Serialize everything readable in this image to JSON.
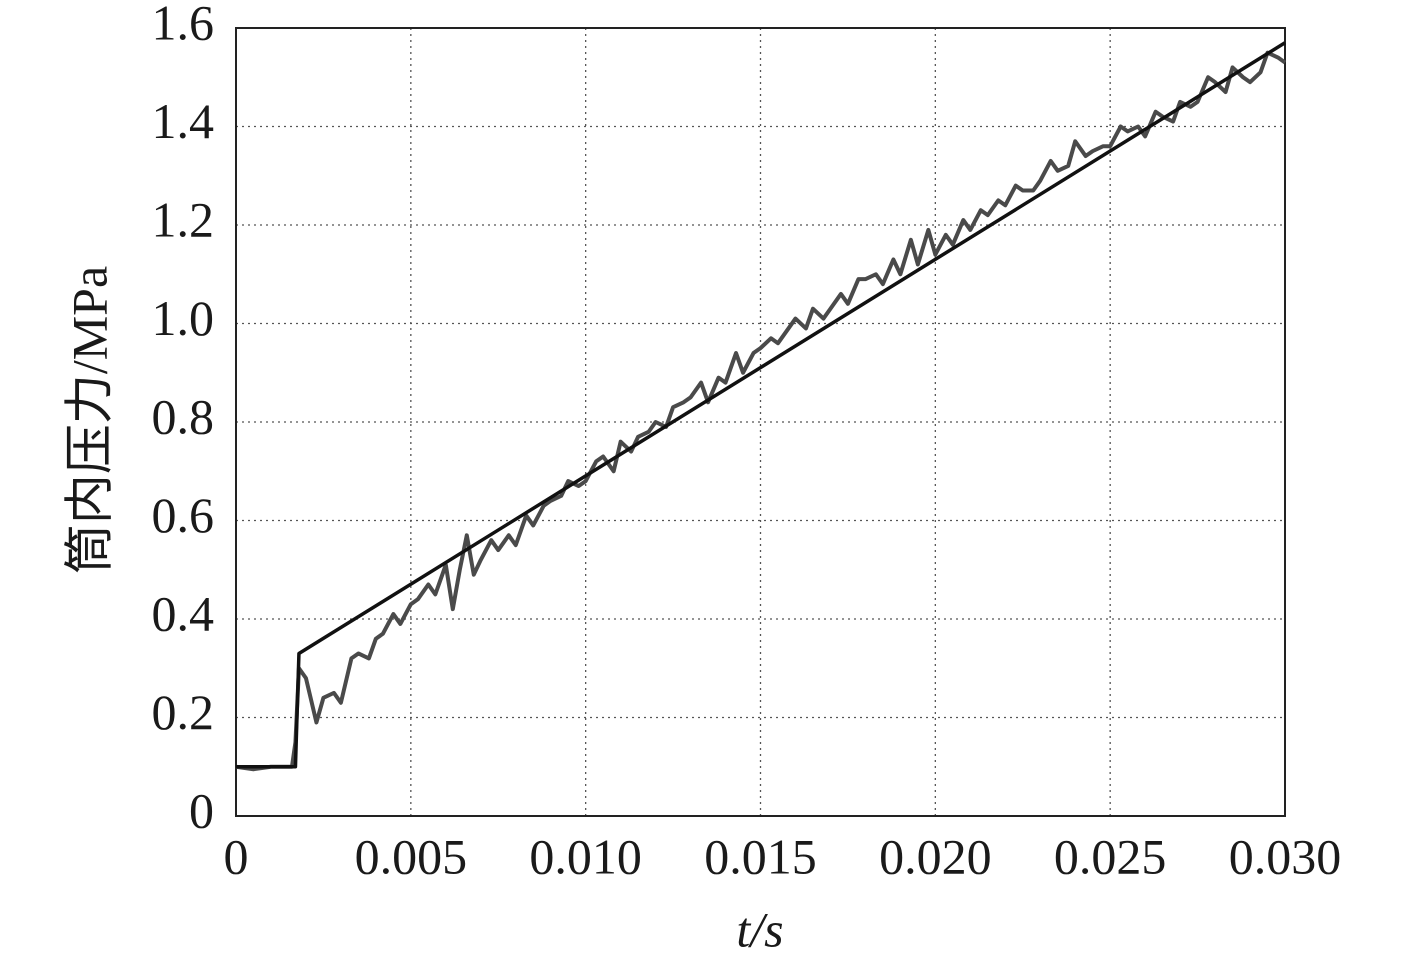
{
  "chart_data": {
    "type": "line",
    "xlabel": "t/s",
    "ylabel": "筒内压力/MPa",
    "xlim": [
      0,
      0.03
    ],
    "ylim": [
      0,
      1.6
    ],
    "xticks": [
      0,
      0.005,
      {
        "value": 0.01,
        "label": "0.010"
      },
      0.015,
      {
        "value": 0.02,
        "label": "0.020"
      },
      0.025,
      {
        "value": 0.03,
        "label": "0.030"
      }
    ],
    "yticks": [
      0,
      0.2,
      0.4,
      0.6,
      0.8,
      {
        "value": 1.0,
        "label": "1.0"
      },
      1.2,
      1.4,
      1.6
    ],
    "grid": true,
    "series": [
      {
        "color": "#4a4a4a",
        "x": [
          0,
          0.0005,
          0.001,
          0.0015,
          0.0016,
          0.0017,
          0.0018,
          0.002,
          0.0023,
          0.0025,
          0.0028,
          0.003,
          0.0033,
          0.0035,
          0.0038,
          0.004,
          0.0042,
          0.0045,
          0.0047,
          0.005,
          0.0052,
          0.0055,
          0.0057,
          0.006,
          0.0062,
          0.0064,
          0.0066,
          0.0068,
          0.007,
          0.0073,
          0.0075,
          0.0078,
          0.008,
          0.0083,
          0.0085,
          0.0088,
          0.009,
          0.0093,
          0.0095,
          0.0098,
          0.01,
          0.0103,
          0.0105,
          0.0108,
          0.011,
          0.0113,
          0.0115,
          0.0118,
          0.012,
          0.0123,
          0.0125,
          0.0128,
          0.013,
          0.0133,
          0.0135,
          0.0138,
          0.014,
          0.0143,
          0.0145,
          0.0148,
          0.015,
          0.0153,
          0.0155,
          0.0158,
          0.016,
          0.0163,
          0.0165,
          0.0168,
          0.017,
          0.0173,
          0.0175,
          0.0178,
          0.018,
          0.0183,
          0.0185,
          0.0188,
          0.019,
          0.0193,
          0.0195,
          0.0198,
          0.02,
          0.0203,
          0.0205,
          0.0208,
          0.021,
          0.0213,
          0.0215,
          0.0218,
          0.022,
          0.0223,
          0.0225,
          0.0228,
          0.023,
          0.0233,
          0.0235,
          0.0238,
          0.024,
          0.0243,
          0.0245,
          0.0248,
          0.025,
          0.0253,
          0.0255,
          0.0258,
          0.026,
          0.0263,
          0.0265,
          0.0268,
          0.027,
          0.0273,
          0.0275,
          0.0278,
          0.028,
          0.0283,
          0.0285,
          0.0288,
          0.029,
          0.0293,
          0.0295,
          0.0298,
          0.03
        ],
        "values": [
          0.1,
          0.095,
          0.1,
          0.1,
          0.1,
          0.15,
          0.3,
          0.28,
          0.19,
          0.24,
          0.25,
          0.23,
          0.32,
          0.33,
          0.32,
          0.36,
          0.37,
          0.41,
          0.39,
          0.43,
          0.44,
          0.47,
          0.45,
          0.51,
          0.42,
          0.5,
          0.57,
          0.49,
          0.52,
          0.56,
          0.54,
          0.57,
          0.55,
          0.61,
          0.59,
          0.63,
          0.64,
          0.65,
          0.68,
          0.67,
          0.68,
          0.72,
          0.73,
          0.7,
          0.76,
          0.74,
          0.77,
          0.78,
          0.8,
          0.79,
          0.83,
          0.84,
          0.85,
          0.88,
          0.84,
          0.89,
          0.88,
          0.94,
          0.9,
          0.94,
          0.95,
          0.97,
          0.96,
          0.99,
          1.01,
          0.99,
          1.03,
          1.01,
          1.03,
          1.06,
          1.04,
          1.09,
          1.09,
          1.1,
          1.08,
          1.13,
          1.1,
          1.17,
          1.12,
          1.19,
          1.14,
          1.18,
          1.16,
          1.21,
          1.19,
          1.23,
          1.22,
          1.25,
          1.24,
          1.28,
          1.27,
          1.27,
          1.29,
          1.33,
          1.31,
          1.32,
          1.37,
          1.34,
          1.35,
          1.36,
          1.36,
          1.4,
          1.39,
          1.4,
          1.38,
          1.43,
          1.42,
          1.41,
          1.45,
          1.44,
          1.45,
          1.5,
          1.49,
          1.47,
          1.52,
          1.5,
          1.49,
          1.51,
          1.55,
          1.54,
          1.53
        ]
      },
      {
        "color": "#111111",
        "x": [
          0,
          0.0017,
          0.0018,
          0.03
        ],
        "values": [
          0.1,
          0.1,
          0.33,
          1.57
        ]
      }
    ]
  }
}
